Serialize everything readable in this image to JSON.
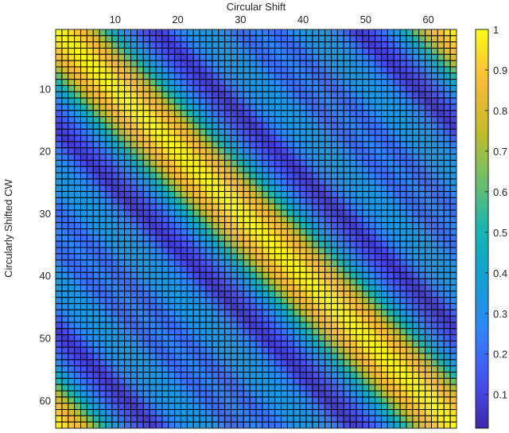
{
  "chart_data": {
    "type": "heatmap",
    "title": "",
    "xlabel": "Circular Shift",
    "ylabel": "Circularly Shifted CW",
    "x_axis_position": "top",
    "rows": 64,
    "cols": 64,
    "structure": "circulant",
    "first_row_by_offset": [
      1.0,
      0.97,
      0.95,
      0.9,
      0.87,
      0.8,
      0.72,
      0.62,
      0.52,
      0.42,
      0.35,
      0.28,
      0.22,
      0.17,
      0.13,
      0.1,
      0.08,
      0.12,
      0.18,
      0.24,
      0.28,
      0.31,
      0.33,
      0.34,
      0.34,
      0.33,
      0.3,
      0.26,
      0.22,
      0.2,
      0.21,
      0.24,
      0.26,
      0.24,
      0.21,
      0.2,
      0.22,
      0.26,
      0.3,
      0.33,
      0.34,
      0.34,
      0.33,
      0.31,
      0.28,
      0.24,
      0.18,
      0.12,
      0.08,
      0.1,
      0.13,
      0.17,
      0.22,
      0.28,
      0.35,
      0.42,
      0.52,
      0.62,
      0.72,
      0.8,
      0.87,
      0.9,
      0.95,
      0.97
    ],
    "x_ticks": [
      "10",
      "20",
      "30",
      "40",
      "50",
      "60"
    ],
    "y_ticks": [
      "10",
      "20",
      "30",
      "40",
      "50",
      "60"
    ],
    "colormap": "parula",
    "clim": [
      0.017,
      1
    ],
    "colorbar_ticks": [
      "0.1",
      "0.2",
      "0.3",
      "0.4",
      "0.5",
      "0.6",
      "0.7",
      "0.8",
      "0.9",
      "1"
    ],
    "grid": false
  }
}
